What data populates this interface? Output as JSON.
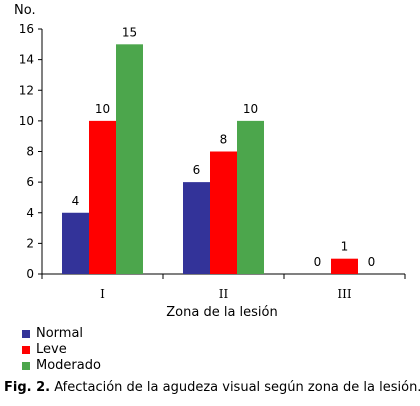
{
  "chart_data": {
    "type": "bar",
    "categories": [
      "I",
      "II",
      "III"
    ],
    "series": [
      {
        "name": "Normal",
        "values": [
          4,
          6,
          0
        ],
        "color": "#333399"
      },
      {
        "name": "Leve",
        "values": [
          10,
          8,
          1
        ],
        "color": "#ff0000"
      },
      {
        "name": "Moderado",
        "values": [
          15,
          10,
          0
        ],
        "color": "#4ca64c"
      }
    ],
    "ylabel": "No.",
    "xlabel": "Zona de la lesión",
    "ylim": [
      0,
      16
    ],
    "yticks": [
      0,
      2,
      4,
      6,
      8,
      10,
      12,
      14,
      16
    ],
    "grid": false,
    "legend_position": "bottom-left"
  },
  "caption": {
    "label": "Fig. 2.",
    "text": " Afectación de la agudeza visual según zona de la lesión."
  }
}
